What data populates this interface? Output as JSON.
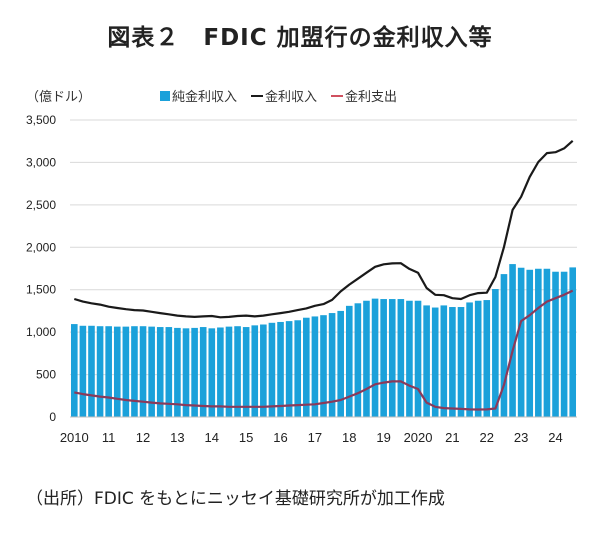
{
  "title": "図表２　FDIC 加盟行の金利収入等",
  "source": "（出所）FDIC をもとにニッセイ基礎研究所が加工作成",
  "chart_data": {
    "type": "bar",
    "title": "図表２　FDIC 加盟行の金利収入等",
    "ylabel": "（億ドル）",
    "xlabel": "",
    "ylim": [
      0,
      3500
    ],
    "yticks": [
      0,
      500,
      1000,
      1500,
      2000,
      2500,
      3000,
      3500
    ],
    "ytick_labels": [
      "0",
      "500",
      "1,000",
      "1,500",
      "2,000",
      "2,500",
      "3,000",
      "3,500"
    ],
    "xtick_labels": [
      "2010",
      "11",
      "12",
      "13",
      "14",
      "15",
      "16",
      "17",
      "18",
      "19",
      "2020",
      "21",
      "22",
      "23",
      "24"
    ],
    "x_start": "2010Q1",
    "x_end": "2024Q3",
    "frequency": "quarterly",
    "grid": "horizontal",
    "legend_position": "top",
    "colors": {
      "net": "#1BA1DA",
      "income": "#1a1a1a",
      "expense": "#8B3A5A"
    },
    "series": [
      {
        "name": "純金利収入",
        "type": "bar",
        "values": [
          1095,
          1075,
          1075,
          1070,
          1070,
          1065,
          1065,
          1070,
          1070,
          1065,
          1060,
          1060,
          1050,
          1045,
          1050,
          1060,
          1045,
          1055,
          1065,
          1070,
          1060,
          1080,
          1090,
          1110,
          1120,
          1130,
          1140,
          1170,
          1185,
          1200,
          1225,
          1250,
          1310,
          1340,
          1370,
          1395,
          1390,
          1390,
          1390,
          1370,
          1370,
          1315,
          1290,
          1315,
          1296,
          1296,
          1350,
          1370,
          1378,
          1508,
          1684,
          1802,
          1759,
          1735,
          1747,
          1747,
          1712,
          1712,
          1763
        ]
      },
      {
        "name": "金利収入",
        "type": "line",
        "values": [
          1390,
          1360,
          1340,
          1325,
          1300,
          1285,
          1270,
          1260,
          1255,
          1240,
          1225,
          1210,
          1195,
          1185,
          1180,
          1185,
          1190,
          1175,
          1180,
          1190,
          1195,
          1185,
          1195,
          1210,
          1225,
          1240,
          1260,
          1280,
          1310,
          1330,
          1380,
          1480,
          1560,
          1630,
          1700,
          1770,
          1800,
          1810,
          1812,
          1745,
          1700,
          1520,
          1440,
          1435,
          1400,
          1390,
          1435,
          1460,
          1465,
          1650,
          2005,
          2440,
          2595,
          2830,
          3005,
          3110,
          3120,
          3165,
          3255
        ]
      },
      {
        "name": "金利支出",
        "type": "line",
        "values": [
          290,
          270,
          255,
          240,
          230,
          215,
          200,
          190,
          180,
          170,
          160,
          155,
          150,
          140,
          135,
          130,
          125,
          125,
          120,
          120,
          120,
          120,
          120,
          125,
          130,
          135,
          140,
          145,
          150,
          165,
          180,
          200,
          240,
          280,
          330,
          385,
          405,
          420,
          420,
          370,
          330,
          170,
          120,
          105,
          100,
          95,
          90,
          88,
          90,
          100,
          380,
          780,
          1130,
          1200,
          1285,
          1360,
          1400,
          1440,
          1490
        ]
      }
    ]
  }
}
